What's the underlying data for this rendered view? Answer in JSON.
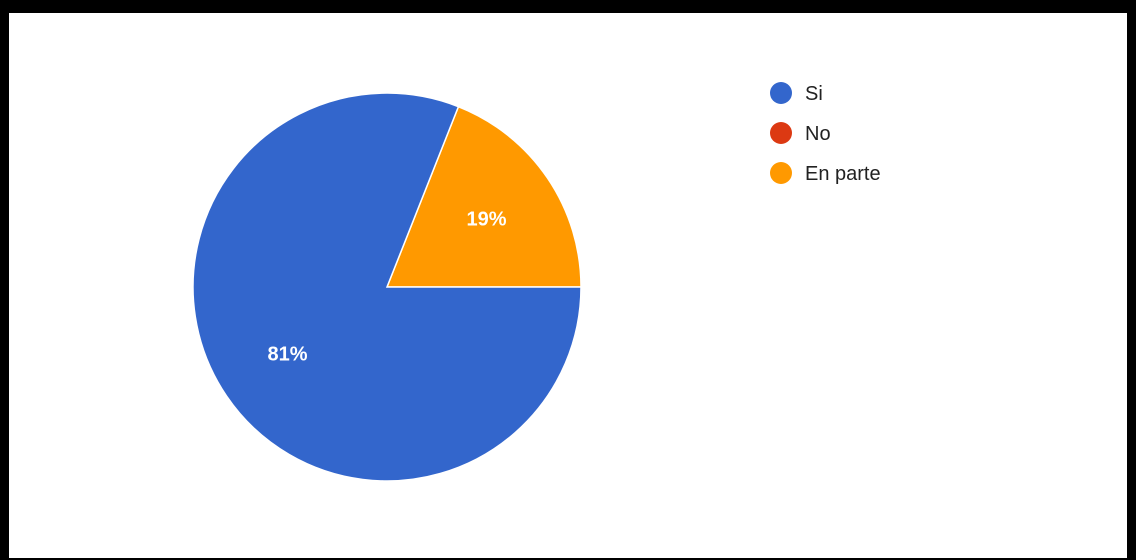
{
  "chart_data": {
    "type": "pie",
    "categories": [
      "Si",
      "No",
      "En parte"
    ],
    "values": [
      81,
      0,
      19
    ],
    "labels": [
      "81%",
      "",
      "19%"
    ],
    "colors": [
      "#3366cc",
      "#dc3912",
      "#ff9900"
    ],
    "legend_position": "right"
  }
}
